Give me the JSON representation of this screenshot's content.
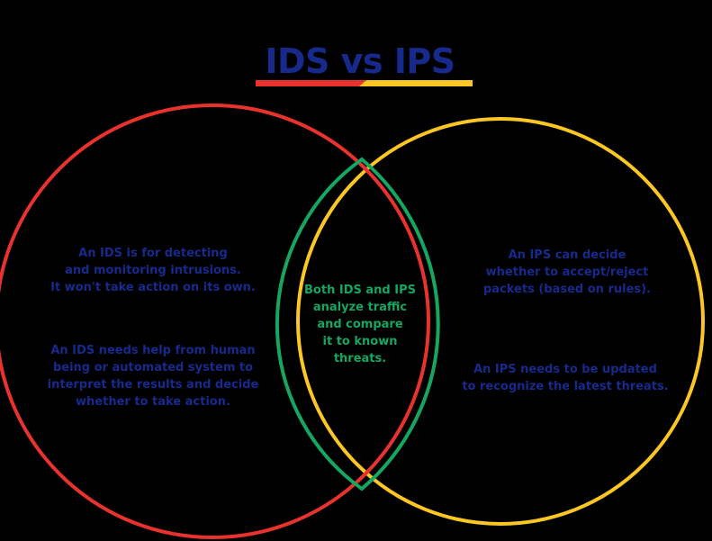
{
  "title": "IDS vs IPS",
  "colors": {
    "background": "#000000",
    "ids_circle": "#e8322e",
    "ips_circle": "#fcc623",
    "overlap": "#15a661",
    "side_text": "#172a8c",
    "overlap_text": "#15a661",
    "title_text": "#172a8c"
  },
  "ids": {
    "point_1": "An IDS is for detecting\nand monitoring intrusions.\nIt won't take action on its own.",
    "point_2": "An IDS needs help from human\nbeing or automated system to\ninterpret the results and decide\nwhether to take action."
  },
  "both": {
    "text": "Both IDS and IPS\nanalyze traffic\nand compare\nit to known\nthreats."
  },
  "ips": {
    "point_1": "An IPS can decide\nwhether to accept/reject\npackets (based on rules).",
    "point_2": "An IPS needs to be updated\nto recognize the latest threats."
  }
}
